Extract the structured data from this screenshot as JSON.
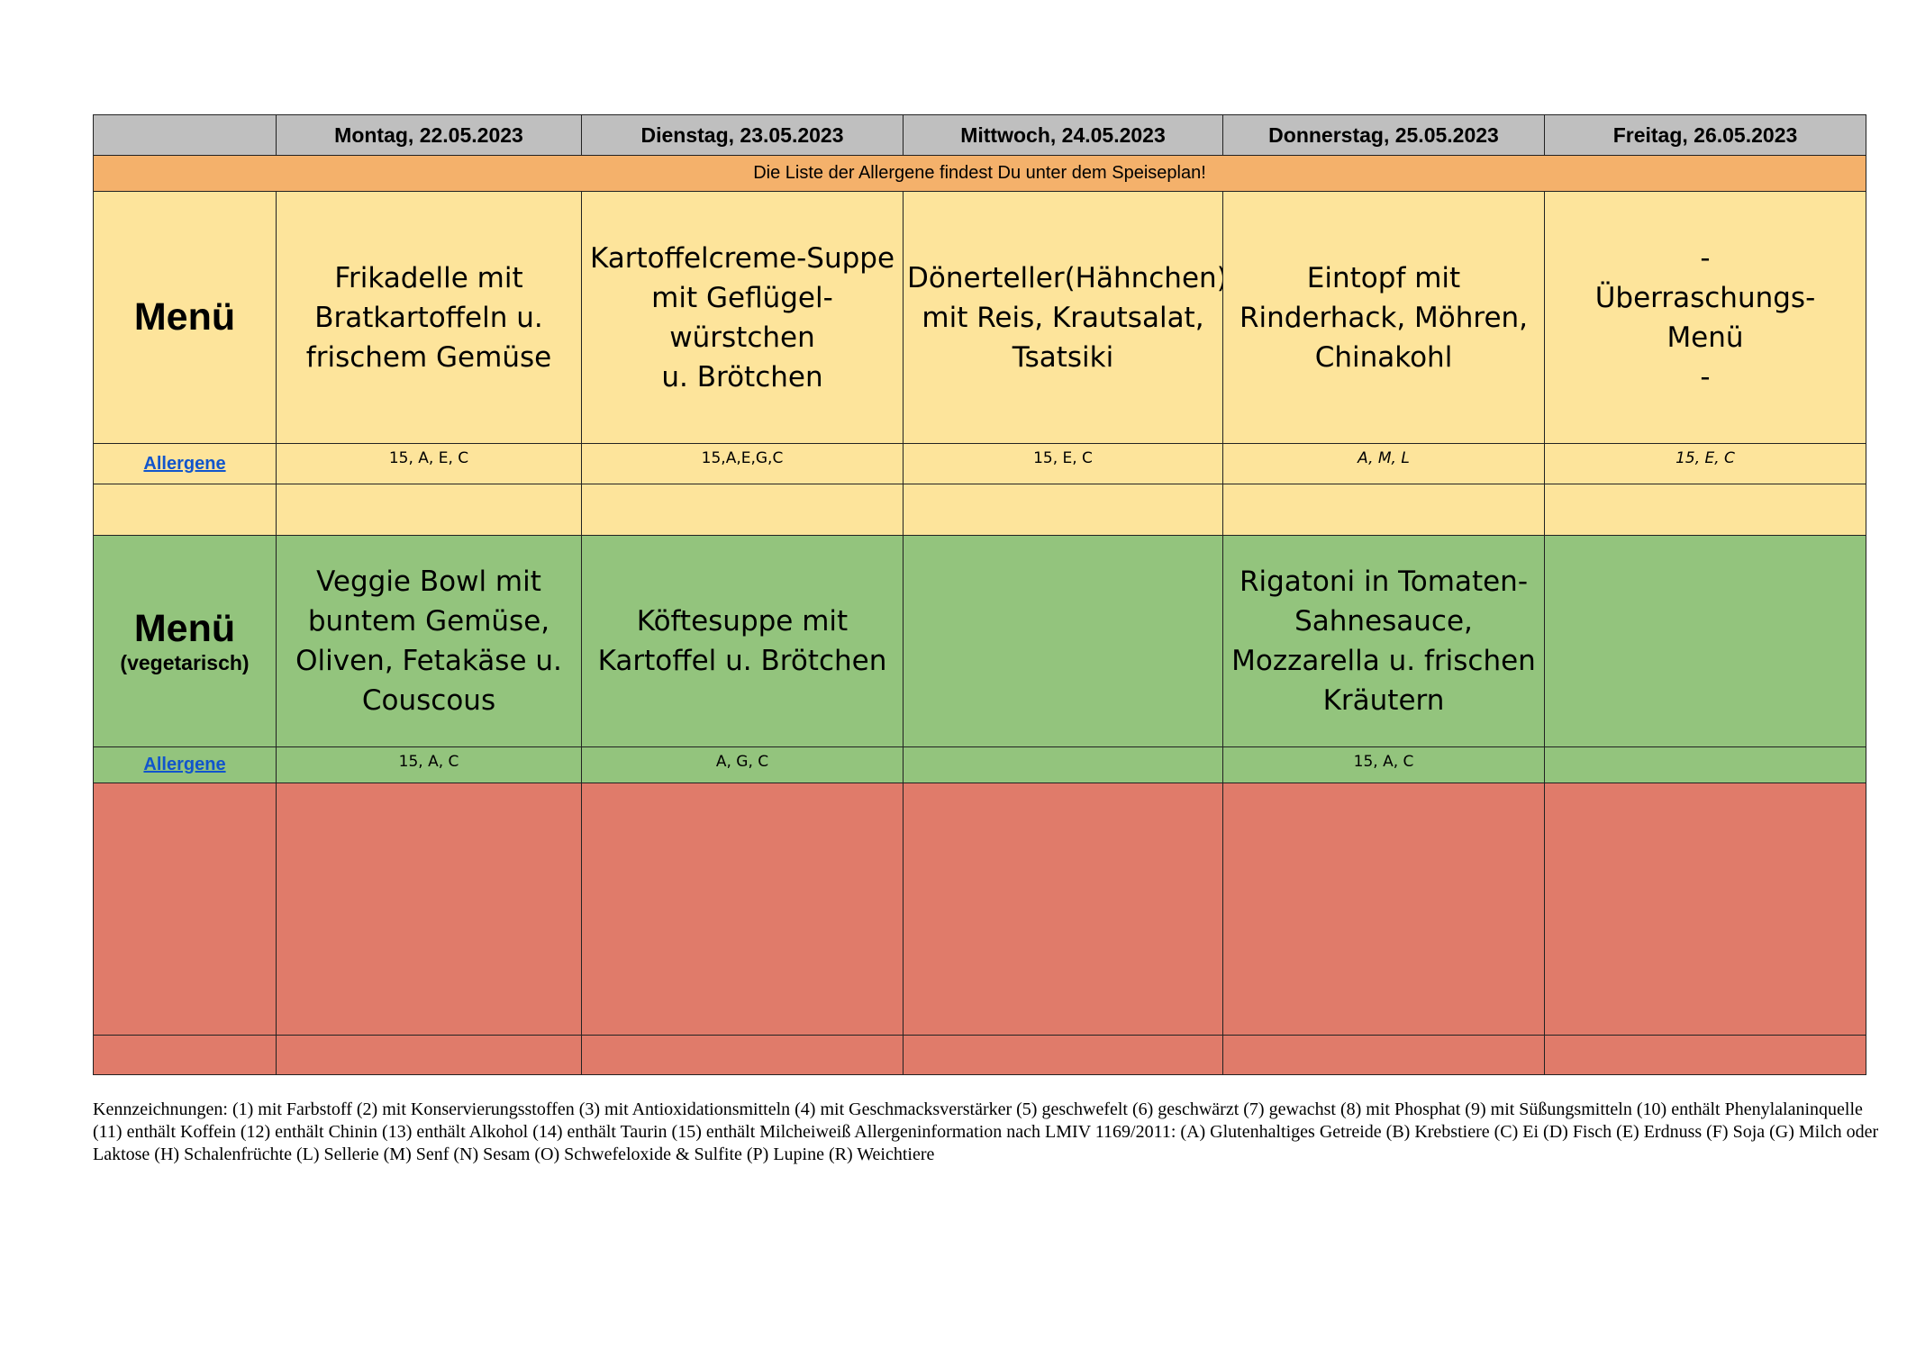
{
  "header": {
    "days": [
      "Montag, 22.05.2023",
      "Dienstag, 23.05.2023",
      "Mittwoch,  24.05.2023",
      "Donnerstag, 25.05.2023",
      "Freitag, 26.05.2023"
    ]
  },
  "notice": "Die Liste der Allergene findest Du unter dem Speiseplan!",
  "sections": [
    {
      "label": "Menü",
      "sublabel": null,
      "dishes": [
        "Frikadelle mit\nBratkartoffeln u.\nfrischem Gemüse",
        "Kartoffelcreme-Suppe\nmit  Geflügel-\nwürstchen\nu. Brötchen",
        "Dönerteller(Hähnchen)\nmit Reis, Krautsalat,\nTsatsiki",
        "Eintopf mit\nRinderhack, Möhren,\nChinakohl",
        "-\nÜberraschungs-\nMenü\n-"
      ],
      "allergen_label": "Allergene",
      "allergens": [
        "15, A, E, C",
        "15,A,E,G,C",
        "15, E, C",
        "A, M, L",
        "15, E, C"
      ]
    },
    {
      "label": "Menü",
      "sublabel": "(vegetarisch)",
      "dishes": [
        "Veggie Bowl mit\nbuntem Gemüse,\nOliven, Fetakäse u.\nCouscous",
        "Köftesuppe mit\nKartoffel u. Brötchen",
        null,
        "Rigatoni in Tomaten-\nSahnesauce,\nMozzarella u. frischen\nKräutern",
        null
      ],
      "allergen_label": "Allergene",
      "allergens": [
        "15, A, C",
        "A, G, C",
        null,
        "15, A, C",
        null
      ]
    }
  ],
  "footnote": "Kennzeichnungen: (1) mit Farbstoff (2) mit Konservierungsstoffen (3) mit Antioxidationsmitteln (4) mit Geschmacksverstärker (5) geschwefelt (6) geschwärzt (7) gewachst (8) mit Phosphat (9) mit Süßungsmitteln (10) enthält Phenylalaninquelle (11) enthält Koffein (12) enthält Chinin (13) enthält Alkohol (14) enthält Taurin (15) enthält Milcheiweiß Allergeninformation nach LMIV 1169/2011: (A) Glutenhaltiges Getreide (B) Krebstiere (C) Ei (D) Fisch (E) Erdnuss (F) Soja (G) Milch oder Laktose (H) Schalenfrüchte (L) Sellerie (M) Senf (N) Sesam (O) Schwefeloxide & Sulfite (P) Lupine (R) Weichtiere"
}
